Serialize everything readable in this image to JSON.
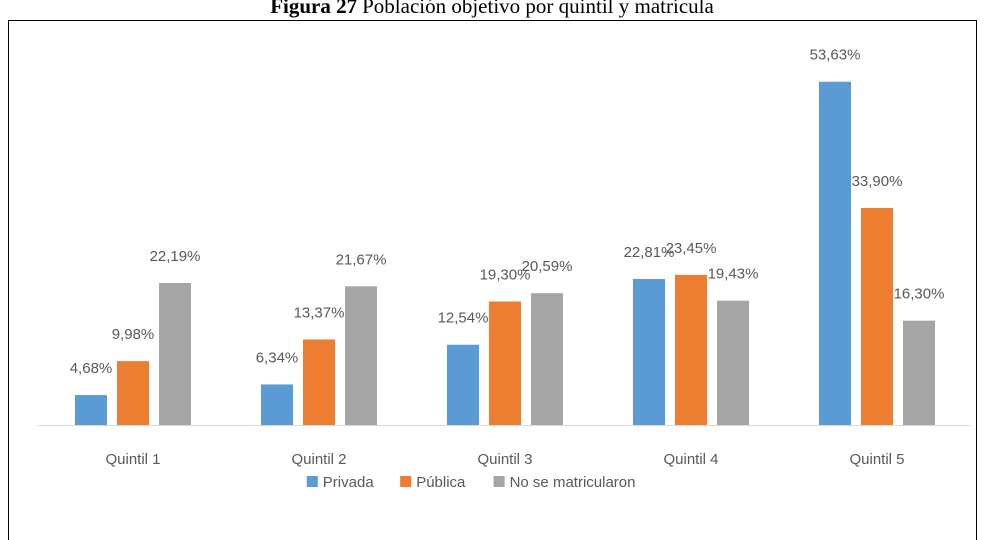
{
  "chart_data": {
    "type": "bar",
    "figure_label": "Figura 27",
    "title": "Población objetivo por quintil y matrícula",
    "categories": [
      "Quintil 1",
      "Quintil 2",
      "Quintil 3",
      "Quintil 4",
      "Quintil 5"
    ],
    "series": [
      {
        "name": "Privada",
        "color": "#5b9bd5",
        "values": [
          4.68,
          6.34,
          12.54,
          22.81,
          53.63
        ],
        "value_labels": [
          "4,68%",
          "6,34%",
          "12,54%",
          "22,81%",
          "53,63%"
        ]
      },
      {
        "name": "Pública",
        "color": "#ed7d31",
        "values": [
          9.98,
          13.37,
          19.3,
          23.45,
          33.9
        ],
        "value_labels": [
          "9,98%",
          "13,37%",
          "19,30%",
          "23,45%",
          "33,90%"
        ]
      },
      {
        "name": "No se matricularon",
        "color": "#a5a5a5",
        "values": [
          22.19,
          21.67,
          20.59,
          19.43,
          16.3
        ],
        "value_labels": [
          "22,19%",
          "21,67%",
          "20,59%",
          "19,43%",
          "16,30%"
        ]
      }
    ],
    "legend": "bottom"
  }
}
